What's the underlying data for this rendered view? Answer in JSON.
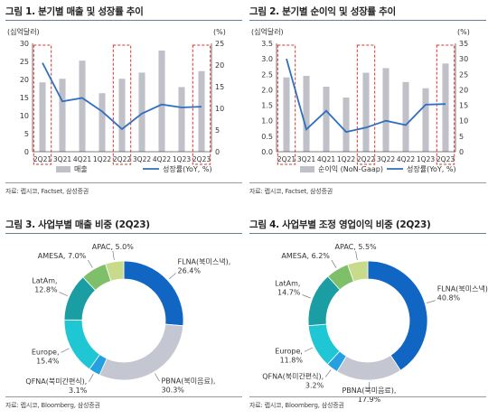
{
  "panels": [
    {
      "title": "그림 1.  분기별 매출 및 성장률 추이",
      "source": "자료: 렙시코, Factset, 삼성증권",
      "left_unit": "(십억달러)",
      "right_unit": "(%)",
      "legend": [
        "매출",
        "성장률(YoY, %)"
      ]
    },
    {
      "title": "그림 2.  분기별 순이익 및 성장률 추이",
      "source": "자료: 렙시코, Factset, 삼성증권",
      "left_unit": "(십억달러)",
      "right_unit": "(%)",
      "legend": [
        "순이익 (NoN-Gaap)",
        "성장률(YoY, %)"
      ]
    },
    {
      "title": "그림 3.  사업부별 매출 비중 (2Q23)",
      "source": "자료: 렙시코, Bloomberg, 삼성증권"
    },
    {
      "title": "그림 4.  사업부별 조정 영업이익 비중 (2Q23)",
      "source": "자료: 렙시코, Bloomberg, 삼성증권"
    }
  ],
  "chart_data": [
    {
      "type": "bar",
      "categories": [
        "2Q21",
        "3Q21",
        "4Q21",
        "1Q22",
        "2Q22",
        "3Q22",
        "4Q22",
        "1Q23",
        "2Q23"
      ],
      "series": [
        {
          "name": "매출",
          "type": "bar",
          "axis": "left",
          "values": [
            19.2,
            20.2,
            25.2,
            16.2,
            20.2,
            21.9,
            28.0,
            17.9,
            22.3
          ],
          "color": "#c0c0c8"
        },
        {
          "name": "성장률(YoY, %)",
          "type": "line",
          "axis": "right",
          "values": [
            20.5,
            11.6,
            12.4,
            9.3,
            5.2,
            8.8,
            10.9,
            10.2,
            10.4
          ],
          "color": "#2f6fbf"
        }
      ],
      "left_axis": {
        "min": 0,
        "max": 30,
        "ticks": [
          0,
          5,
          10,
          15,
          20,
          25,
          30
        ]
      },
      "right_axis": {
        "min": 0,
        "max": 25,
        "ticks": [
          0,
          5,
          10,
          15,
          20,
          25
        ]
      },
      "highlight_categories": [
        "2Q21",
        "2Q22",
        "2Q23"
      ]
    },
    {
      "type": "bar",
      "categories": [
        "2Q21",
        "3Q21",
        "4Q21",
        "1Q22",
        "2Q22",
        "3Q22",
        "4Q22",
        "1Q23",
        "2Q23"
      ],
      "series": [
        {
          "name": "순이익 (NoN-Gaap)",
          "type": "bar",
          "axis": "left",
          "values": [
            2.4,
            2.45,
            2.1,
            1.75,
            2.55,
            2.7,
            2.25,
            2.05,
            2.85
          ],
          "color": "#c0c0c8"
        },
        {
          "name": "성장률(YoY, %)",
          "type": "line",
          "axis": "right",
          "values": [
            30,
            7.2,
            13.2,
            6.4,
            7.8,
            10.0,
            8.6,
            15.2,
            15.4
          ],
          "color": "#2f6fbf"
        }
      ],
      "left_axis": {
        "min": 0,
        "max": 3.5,
        "ticks": [
          0,
          0.5,
          1.0,
          1.5,
          2.0,
          2.5,
          3.0,
          3.5
        ]
      },
      "right_axis": {
        "min": 0,
        "max": 35,
        "ticks": [
          0,
          5,
          10,
          15,
          20,
          25,
          30,
          35
        ]
      },
      "highlight_categories": [
        "2Q21",
        "2Q22",
        "2Q23"
      ]
    },
    {
      "type": "pie",
      "donut": true,
      "slices": [
        {
          "label": "FLNA(북미스낵)",
          "value": 26.4,
          "color": "#1166c4"
        },
        {
          "label": "PBNA(북미음료)",
          "value": 30.3,
          "color": "#c4c7d1"
        },
        {
          "label": "QFNA(북미간편식)",
          "value": 3.1,
          "color": "#26a0e0"
        },
        {
          "label": "Europe",
          "value": 15.4,
          "color": "#1fc7d4"
        },
        {
          "label": "LatAm",
          "value": 12.8,
          "color": "#1a9ea3"
        },
        {
          "label": "AMESA",
          "value": 7.0,
          "color": "#7fbf6a"
        },
        {
          "label": "APAC",
          "value": 5.0,
          "color": "#c7db8a"
        }
      ]
    },
    {
      "type": "pie",
      "donut": true,
      "slices": [
        {
          "label": "FLNA(북미스낵)",
          "value": 40.8,
          "color": "#1166c4"
        },
        {
          "label": "PBNA(북미음료)",
          "value": 17.9,
          "color": "#c4c7d1"
        },
        {
          "label": "QFNA(북미간편식)",
          "value": 3.2,
          "color": "#26a0e0"
        },
        {
          "label": "Europe",
          "value": 11.8,
          "color": "#1fc7d4"
        },
        {
          "label": "LatAm",
          "value": 14.7,
          "color": "#1a9ea3"
        },
        {
          "label": "AMESA",
          "value": 6.2,
          "color": "#7fbf6a"
        },
        {
          "label": "APAC",
          "value": 5.5,
          "color": "#c7db8a"
        }
      ]
    }
  ]
}
